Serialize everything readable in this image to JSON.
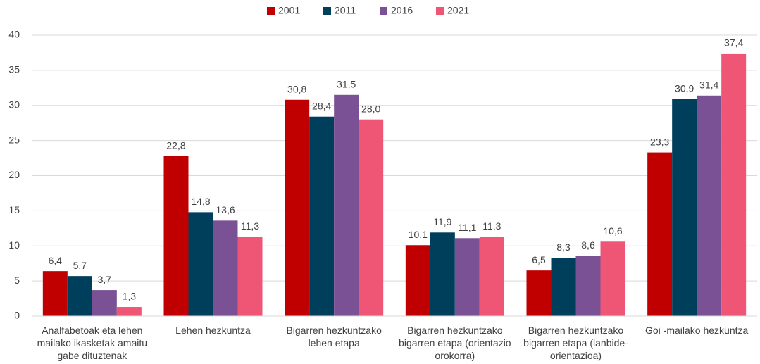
{
  "chart_data": {
    "type": "bar",
    "categories": [
      "Analfabetoak eta lehen mailako ikasketak amaitu gabe dituztenak",
      "Lehen hezkuntza",
      "Bigarren hezkuntzako lehen etapa",
      "Bigarren hezkuntzako bigarren etapa (orientazio orokorra)",
      "Bigarren hezkuntzako bigarren etapa (lanbide-orientazioa)",
      "Goi -mailako hezkuntza"
    ],
    "series": [
      {
        "name": "2001",
        "color": "#c00000",
        "values": [
          6.4,
          22.8,
          30.8,
          10.1,
          6.5,
          23.3
        ],
        "value_labels": [
          "6,4",
          "22,8",
          "30,8",
          "10,1",
          "6,5",
          "23,3"
        ]
      },
      {
        "name": "2011",
        "color": "#003f5c",
        "values": [
          5.7,
          14.8,
          28.4,
          11.9,
          8.3,
          30.9
        ],
        "value_labels": [
          "5,7",
          "14,8",
          "28,4",
          "11,9",
          "8,3",
          "30,9"
        ]
      },
      {
        "name": "2016",
        "color": "#7a5195",
        "values": [
          3.7,
          13.6,
          31.5,
          11.1,
          8.6,
          31.4
        ],
        "value_labels": [
          "3,7",
          "13,6",
          "31,5",
          "11,1",
          "8,6",
          "31,4"
        ]
      },
      {
        "name": "2021",
        "color": "#ef5675",
        "values": [
          1.3,
          11.3,
          28.0,
          11.3,
          10.6,
          37.4
        ],
        "value_labels": [
          "1,3",
          "11,3",
          "28,0",
          "11,3",
          "10,6",
          "37,4"
        ]
      }
    ],
    "ylim": [
      0,
      40
    ],
    "yticks": [
      0,
      5,
      10,
      15,
      20,
      25,
      30,
      35,
      40
    ],
    "grid": true,
    "legend": "top"
  }
}
